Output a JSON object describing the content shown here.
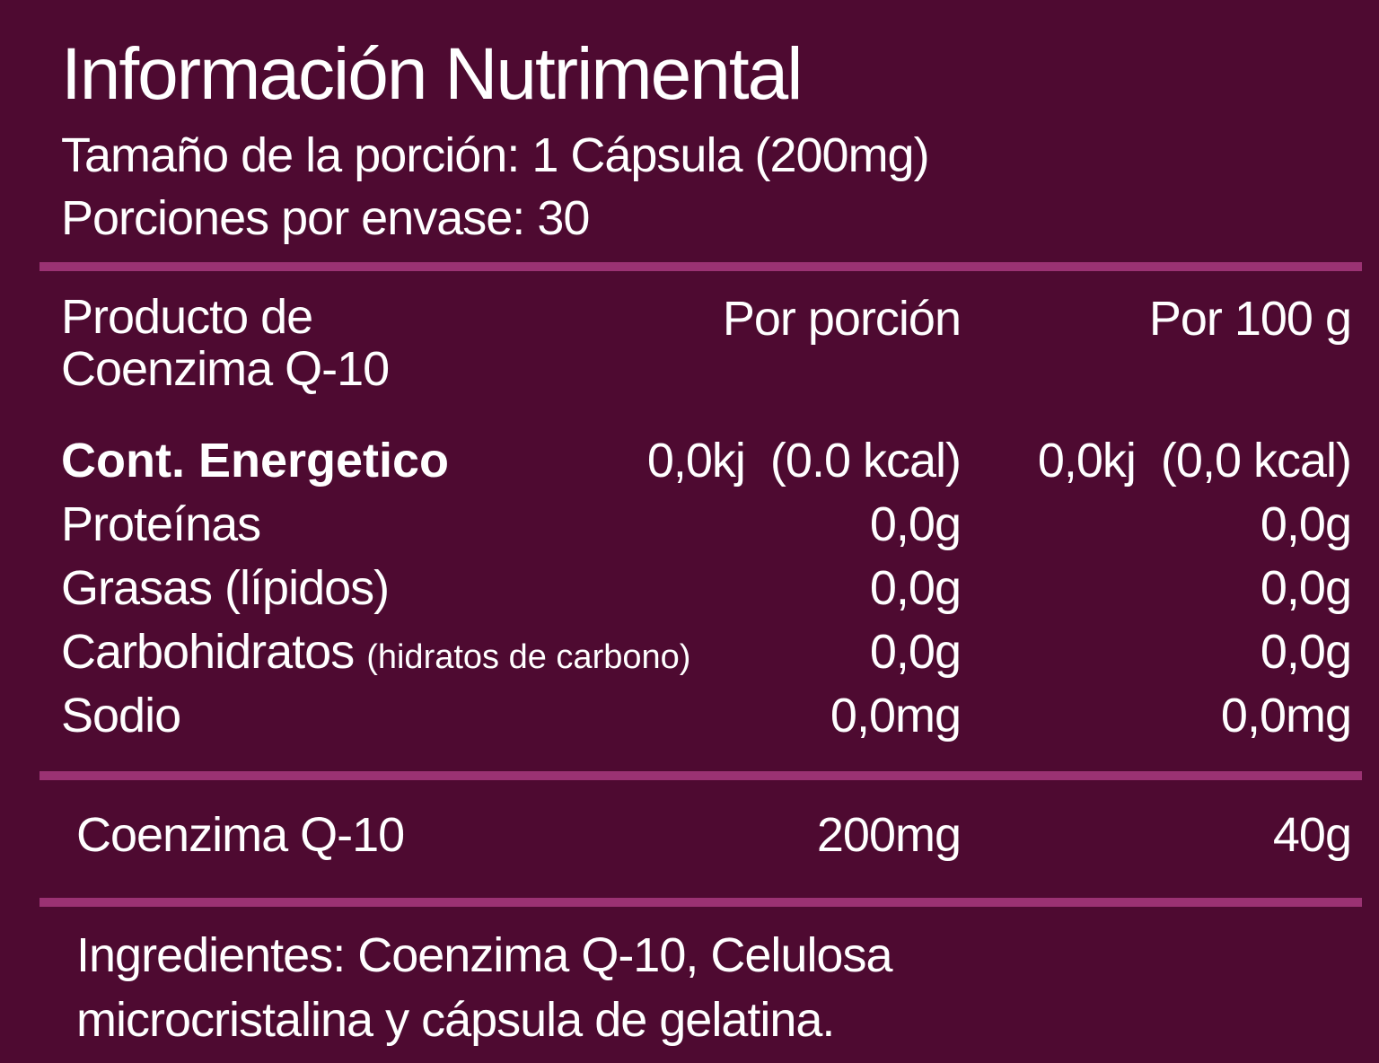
{
  "colors": {
    "background": "#4e0a31",
    "divider": "#9b3273",
    "text": "#ffffff"
  },
  "header": {
    "title": "Información Nutrimental",
    "serving_size": "Tamaño de la porción: 1 Cápsula (200mg)",
    "servings_per_container": "Porciones por envase: 30"
  },
  "table": {
    "product_line1": "Producto de",
    "product_line2": "Coenzima Q-10",
    "col_per_serving": "Por porción",
    "col_per_100g": "Por 100 g",
    "rows": [
      {
        "label": "Cont. Energetico",
        "per_serving": "0,0kj  (0.0 kcal)",
        "per_100g": "0,0kj  (0,0 kcal)"
      },
      {
        "label": "Proteínas",
        "per_serving": "0,0g",
        "per_100g": "0,0g"
      },
      {
        "label": "Grasas (lípidos)",
        "per_serving": "0,0g",
        "per_100g": "0,0g"
      },
      {
        "label": "Carbohidratos",
        "sublabel": "(hidratos de carbono)",
        "per_serving": "0,0g",
        "per_100g": "0,0g"
      },
      {
        "label": "Sodio",
        "per_serving": "0,0mg",
        "per_100g": "0,0mg"
      }
    ],
    "supplement": {
      "label": "Coenzima Q-10",
      "per_serving": "200mg",
      "per_100g": "40g"
    }
  },
  "ingredients": "Ingredientes: Coenzima Q-10,  Celulosa microcristalina y cápsula de gelatina."
}
